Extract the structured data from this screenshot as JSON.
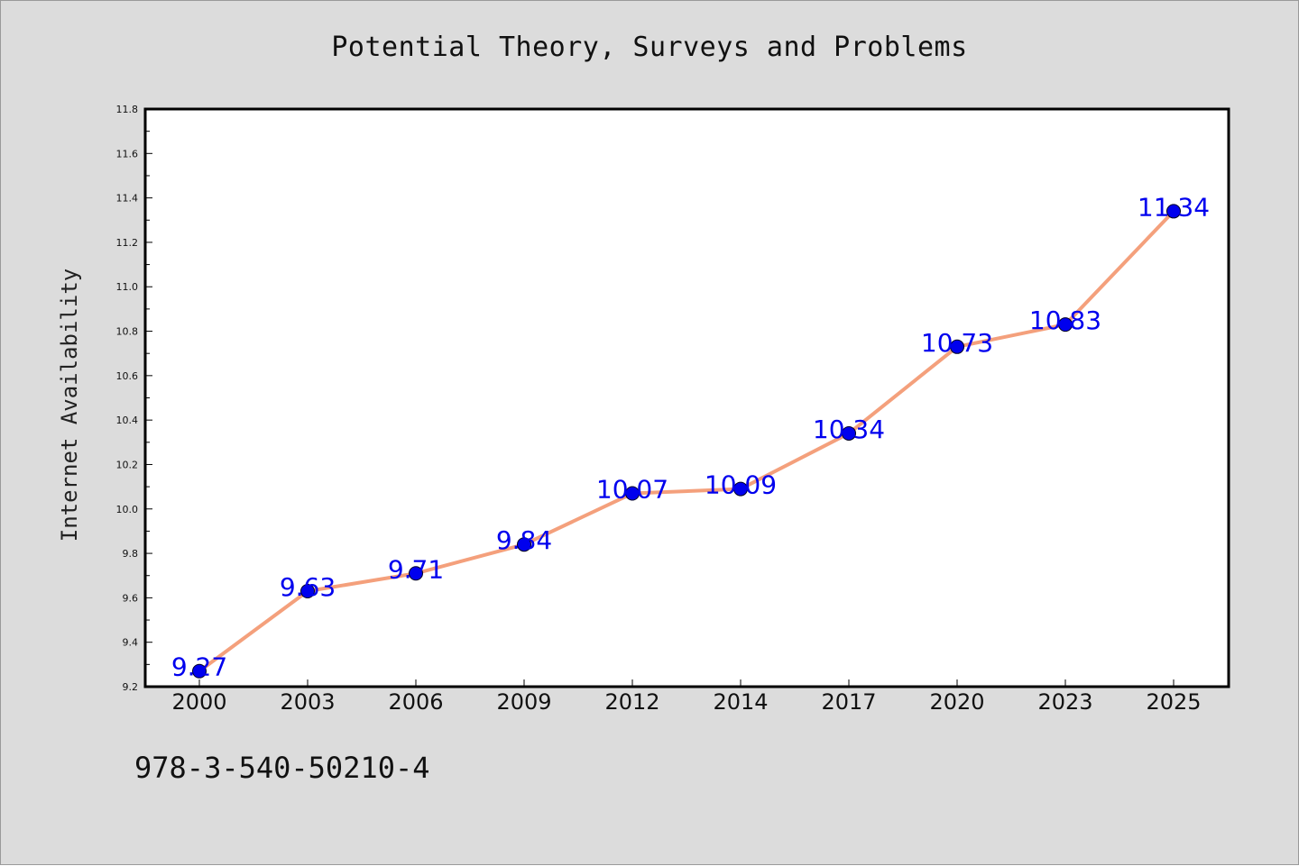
{
  "footnote": "978-3-540-50210-4",
  "colors": {
    "background": "#dcdcdc",
    "plot_area": "#ffffff",
    "line": "#f4a07c",
    "marker": "#0000ee",
    "data_label": "#0000ee"
  },
  "chart_data": {
    "type": "line",
    "title": "Potential Theory, Surveys and Problems",
    "xlabel": "",
    "ylabel": "Internet Availability",
    "categories": [
      "2000",
      "2003",
      "2006",
      "2009",
      "2012",
      "2014",
      "2017",
      "2020",
      "2023",
      "2025"
    ],
    "series": [
      {
        "values": [
          9.27,
          9.63,
          9.71,
          9.84,
          10.07,
          10.09,
          10.34,
          10.73,
          10.83,
          11.34
        ]
      }
    ],
    "data_labels": [
      "9.27",
      "9.63",
      "9.71",
      "9.84",
      "10.07",
      "10.09",
      "10.34",
      "10.73",
      "10.83",
      "11.34"
    ],
    "ylim": [
      9.2,
      11.8
    ],
    "yticks": [
      "9.2",
      "9.4",
      "9.6",
      "9.8",
      "10.0",
      "10.2",
      "10.4",
      "10.6",
      "10.8",
      "11.0",
      "11.2",
      "11.4",
      "11.6",
      "11.8"
    ],
    "grid": false,
    "legend": "none"
  }
}
